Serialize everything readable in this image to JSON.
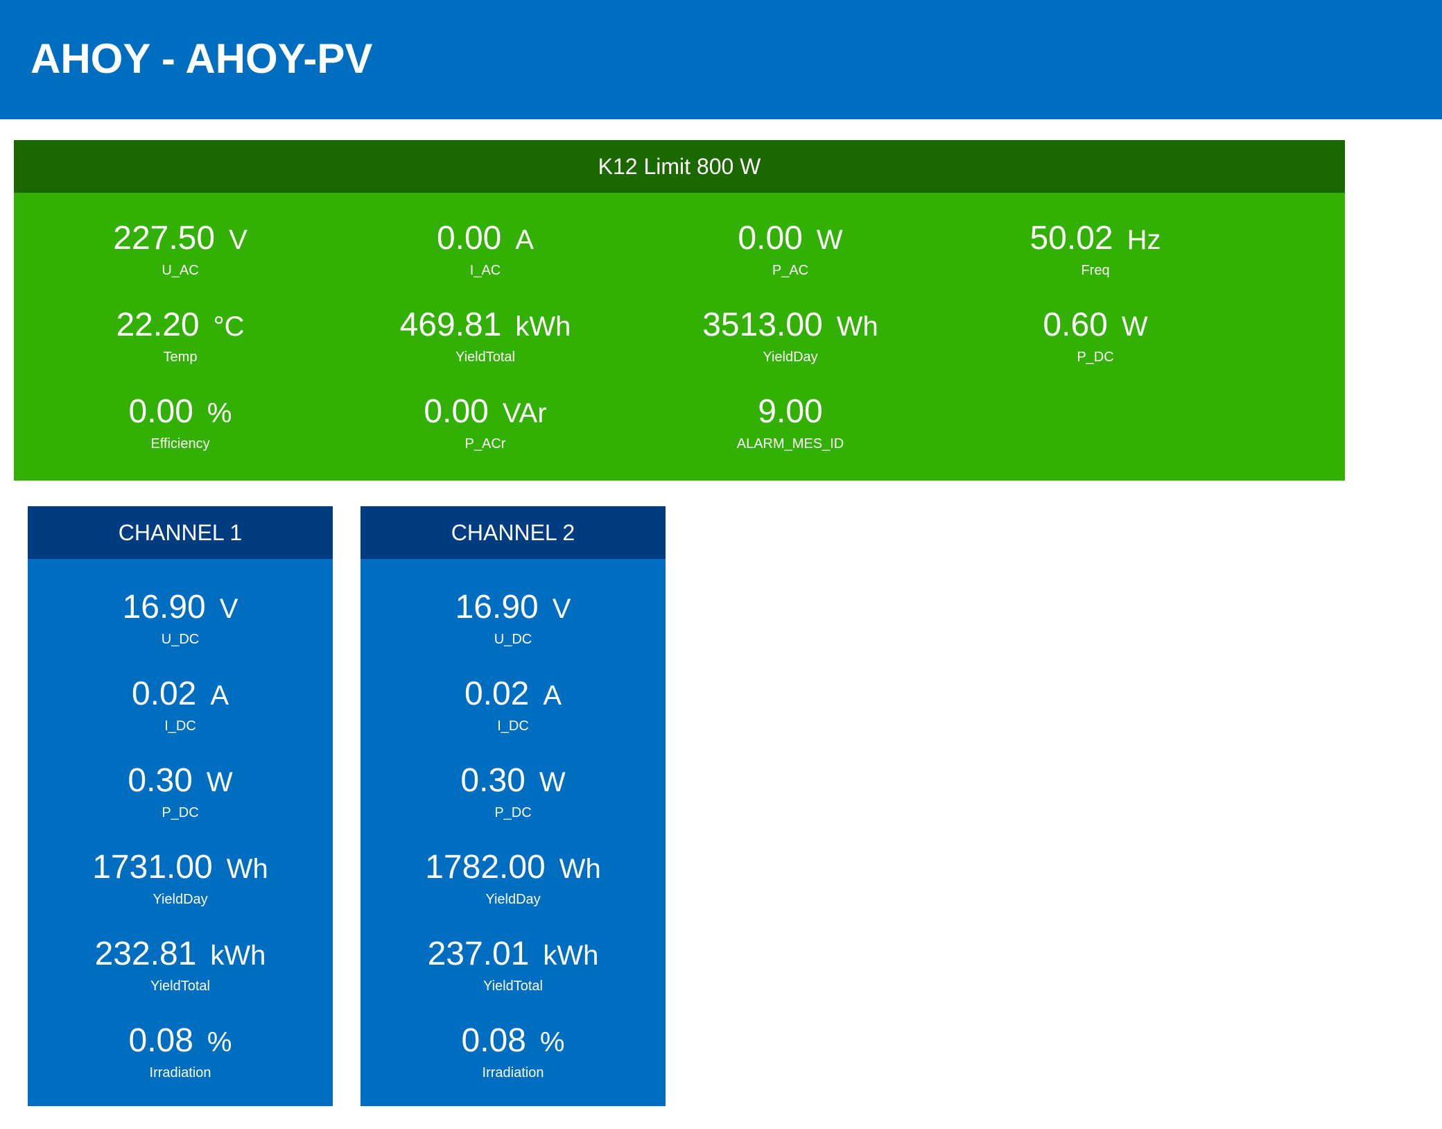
{
  "header": {
    "title": "AHOY - AHOY-PV"
  },
  "inverter": {
    "title": "K12 Limit 800 W",
    "metrics": [
      {
        "value": "227.50",
        "unit": "V",
        "label": "U_AC"
      },
      {
        "value": "0.00",
        "unit": "A",
        "label": "I_AC"
      },
      {
        "value": "0.00",
        "unit": "W",
        "label": "P_AC"
      },
      {
        "value": "50.02",
        "unit": "Hz",
        "label": "Freq"
      },
      {
        "value": "22.20",
        "unit": "°C",
        "label": "Temp"
      },
      {
        "value": "469.81",
        "unit": "kWh",
        "label": "YieldTotal"
      },
      {
        "value": "3513.00",
        "unit": "Wh",
        "label": "YieldDay"
      },
      {
        "value": "0.60",
        "unit": "W",
        "label": "P_DC"
      },
      {
        "value": "0.00",
        "unit": "%",
        "label": "Efficiency"
      },
      {
        "value": "0.00",
        "unit": "VAr",
        "label": "P_ACr"
      },
      {
        "value": "9.00",
        "unit": "",
        "label": "ALARM_MES_ID"
      }
    ]
  },
  "channels": [
    {
      "title": "CHANNEL 1",
      "metrics": [
        {
          "value": "16.90",
          "unit": "V",
          "label": "U_DC"
        },
        {
          "value": "0.02",
          "unit": "A",
          "label": "I_DC"
        },
        {
          "value": "0.30",
          "unit": "W",
          "label": "P_DC"
        },
        {
          "value": "1731.00",
          "unit": "Wh",
          "label": "YieldDay"
        },
        {
          "value": "232.81",
          "unit": "kWh",
          "label": "YieldTotal"
        },
        {
          "value": "0.08",
          "unit": "%",
          "label": "Irradiation"
        }
      ]
    },
    {
      "title": "CHANNEL 2",
      "metrics": [
        {
          "value": "16.90",
          "unit": "V",
          "label": "U_DC"
        },
        {
          "value": "0.02",
          "unit": "A",
          "label": "I_DC"
        },
        {
          "value": "0.30",
          "unit": "W",
          "label": "P_DC"
        },
        {
          "value": "1782.00",
          "unit": "Wh",
          "label": "YieldDay"
        },
        {
          "value": "237.01",
          "unit": "kWh",
          "label": "YieldTotal"
        },
        {
          "value": "0.08",
          "unit": "%",
          "label": "Irradiation"
        }
      ]
    }
  ],
  "colors": {
    "header_bg": "#006ec0",
    "inverter_bg": "#32b004",
    "inverter_head_bg": "#1c6800",
    "channel_bg": "#006ec0",
    "channel_head_bg": "#003c80",
    "text": "#ffffff"
  }
}
